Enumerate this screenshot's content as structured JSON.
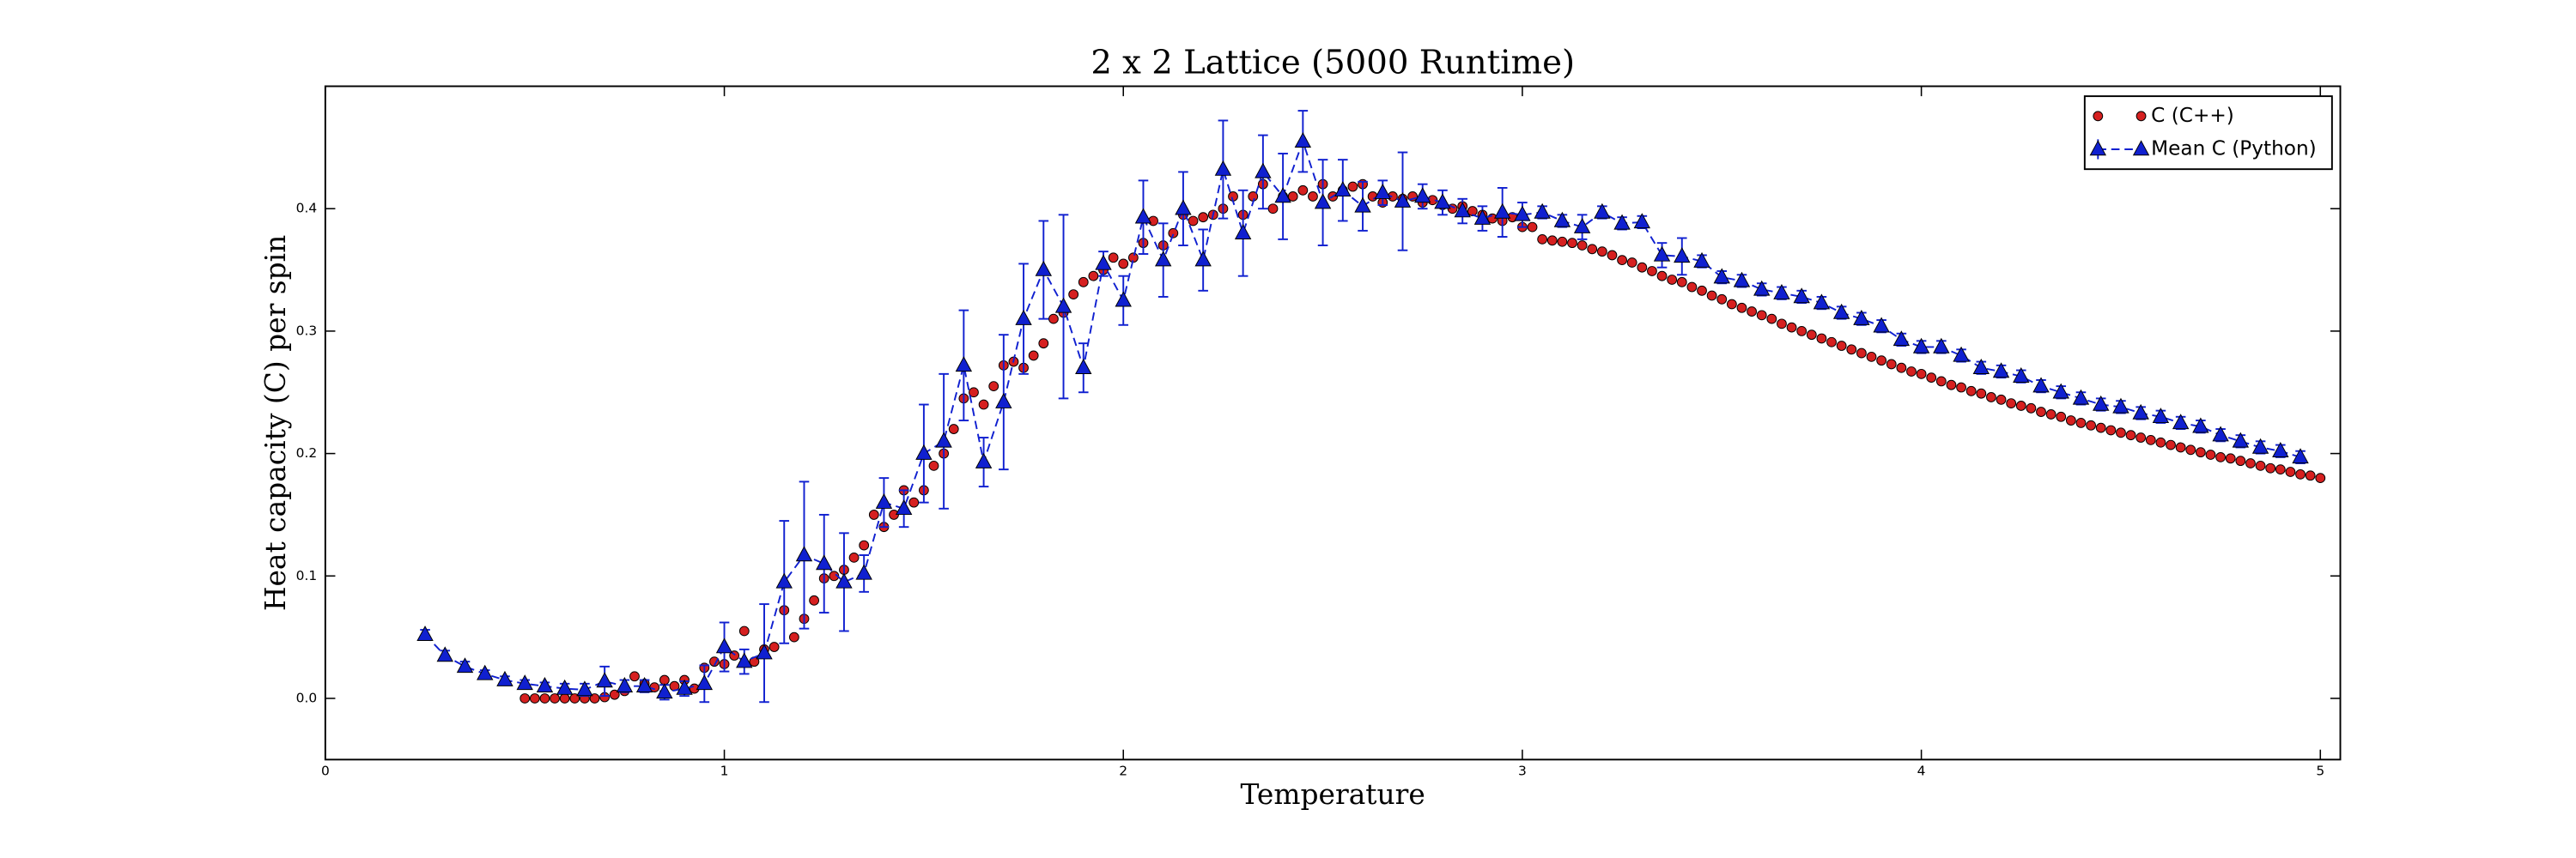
{
  "chart_data": {
    "type": "scatter",
    "title": "2 x 2 Lattice (5000 Runtime)",
    "xlabel": "Temperature",
    "ylabel": "Heat capacity (C) per spin",
    "xlim": [
      0,
      5.05
    ],
    "ylim": [
      -0.05,
      0.5
    ],
    "xticks": [
      0,
      1,
      2,
      3,
      4,
      5
    ],
    "yticks": [
      {
        "value": 0,
        "label": "0.0"
      },
      {
        "value": 0.1,
        "label": "0.1"
      },
      {
        "value": 0.2,
        "label": "0.2"
      },
      {
        "value": 0.3,
        "label": "0.3"
      },
      {
        "value": 0.4,
        "label": "0.4"
      }
    ],
    "legend": "upper right",
    "series": [
      {
        "name": "C (C++)",
        "color": "#d62020",
        "marker": "o",
        "linestyle": "none",
        "x": [
          0.5,
          0.525,
          0.55,
          0.575,
          0.6,
          0.625,
          0.65,
          0.675,
          0.7,
          0.725,
          0.75,
          0.775,
          0.8,
          0.825,
          0.85,
          0.875,
          0.9,
          0.925,
          0.95,
          0.975,
          1.0,
          1.025,
          1.05,
          1.075,
          1.1,
          1.125,
          1.15,
          1.175,
          1.2,
          1.225,
          1.25,
          1.275,
          1.3,
          1.325,
          1.35,
          1.375,
          1.4,
          1.425,
          1.45,
          1.475,
          1.5,
          1.525,
          1.55,
          1.575,
          1.6,
          1.625,
          1.65,
          1.675,
          1.7,
          1.725,
          1.75,
          1.775,
          1.8,
          1.825,
          1.85,
          1.875,
          1.9,
          1.925,
          1.95,
          1.975,
          2.0,
          2.025,
          2.05,
          2.075,
          2.1,
          2.125,
          2.15,
          2.175,
          2.2,
          2.225,
          2.25,
          2.275,
          2.3,
          2.325,
          2.35,
          2.375,
          2.4,
          2.425,
          2.45,
          2.475,
          2.5,
          2.525,
          2.55,
          2.575,
          2.6,
          2.625,
          2.65,
          2.675,
          2.7,
          2.725,
          2.75,
          2.775,
          2.8,
          2.825,
          2.85,
          2.875,
          2.9,
          2.925,
          2.95,
          2.975,
          3.0,
          3.025,
          3.05,
          3.075,
          3.1,
          3.125,
          3.15,
          3.175,
          3.2,
          3.225,
          3.25,
          3.275,
          3.3,
          3.325,
          3.35,
          3.375,
          3.4,
          3.425,
          3.45,
          3.475,
          3.5,
          3.525,
          3.55,
          3.575,
          3.6,
          3.625,
          3.65,
          3.675,
          3.7,
          3.725,
          3.75,
          3.775,
          3.8,
          3.825,
          3.85,
          3.875,
          3.9,
          3.925,
          3.95,
          3.975,
          4.0,
          4.025,
          4.05,
          4.075,
          4.1,
          4.125,
          4.15,
          4.175,
          4.2,
          4.225,
          4.25,
          4.275,
          4.3,
          4.325,
          4.35,
          4.375,
          4.4,
          4.425,
          4.45,
          4.475,
          4.5,
          4.525,
          4.55,
          4.575,
          4.6,
          4.625,
          4.65,
          4.675,
          4.7,
          4.725,
          4.75,
          4.775,
          4.8,
          4.825,
          4.85,
          4.875,
          4.9,
          4.925,
          4.95,
          4.975,
          5.0
        ],
        "values": [
          0,
          0,
          0,
          0,
          0,
          0,
          0,
          0,
          0.001,
          0.003,
          0.006,
          0.018,
          0.012,
          0.009,
          0.015,
          0.01,
          0.015,
          0.008,
          0.025,
          0.03,
          0.028,
          0.035,
          0.055,
          0.03,
          0.04,
          0.042,
          0.072,
          0.05,
          0.065,
          0.08,
          0.098,
          0.1,
          0.105,
          0.115,
          0.125,
          0.15,
          0.14,
          0.15,
          0.17,
          0.16,
          0.17,
          0.19,
          0.2,
          0.22,
          0.245,
          0.25,
          0.24,
          0.255,
          0.272,
          0.275,
          0.27,
          0.28,
          0.29,
          0.31,
          0.315,
          0.33,
          0.34,
          0.345,
          0.35,
          0.36,
          0.355,
          0.36,
          0.372,
          0.39,
          0.37,
          0.38,
          0.395,
          0.39,
          0.393,
          0.395,
          0.4,
          0.41,
          0.395,
          0.41,
          0.42,
          0.4,
          0.41,
          0.41,
          0.415,
          0.41,
          0.42,
          0.41,
          0.415,
          0.418,
          0.42,
          0.41,
          0.405,
          0.41,
          0.408,
          0.41,
          0.405,
          0.407,
          0.403,
          0.4,
          0.402,
          0.398,
          0.395,
          0.392,
          0.39,
          0.393,
          0.385,
          0.385,
          0.375,
          0.374,
          0.373,
          0.372,
          0.37,
          0.367,
          0.365,
          0.362,
          0.358,
          0.356,
          0.352,
          0.349,
          0.345,
          0.342,
          0.34,
          0.336,
          0.333,
          0.329,
          0.326,
          0.322,
          0.319,
          0.316,
          0.313,
          0.31,
          0.306,
          0.303,
          0.3,
          0.297,
          0.294,
          0.291,
          0.288,
          0.285,
          0.282,
          0.279,
          0.276,
          0.273,
          0.27,
          0.267,
          0.265,
          0.262,
          0.259,
          0.256,
          0.254,
          0.251,
          0.249,
          0.246,
          0.244,
          0.241,
          0.239,
          0.237,
          0.234,
          0.232,
          0.23,
          0.227,
          0.225,
          0.223,
          0.221,
          0.219,
          0.217,
          0.215,
          0.213,
          0.211,
          0.209,
          0.207,
          0.205,
          0.203,
          0.201,
          0.199,
          0.197,
          0.196,
          0.194,
          0.192,
          0.19,
          0.188,
          0.187,
          0.185,
          0.183,
          0.182,
          0.18
        ]
      },
      {
        "name": "Mean C (Python)",
        "color": "#1020d0",
        "marker": "^",
        "linestyle": "dashed",
        "x": [
          0.25,
          0.3,
          0.35,
          0.4,
          0.45,
          0.5,
          0.55,
          0.6,
          0.65,
          0.7,
          0.75,
          0.8,
          0.85,
          0.9,
          0.95,
          1.0,
          1.05,
          1.1,
          1.15,
          1.2,
          1.25,
          1.3,
          1.35,
          1.4,
          1.45,
          1.5,
          1.55,
          1.6,
          1.65,
          1.7,
          1.75,
          1.8,
          1.85,
          1.9,
          1.95,
          2.0,
          2.05,
          2.1,
          2.15,
          2.2,
          2.25,
          2.3,
          2.35,
          2.4,
          2.45,
          2.5,
          2.55,
          2.6,
          2.65,
          2.7,
          2.75,
          2.8,
          2.85,
          2.9,
          2.95,
          3.0,
          3.05,
          3.1,
          3.15,
          3.2,
          3.25,
          3.3,
          3.35,
          3.4,
          3.45,
          3.5,
          3.55,
          3.6,
          3.65,
          3.7,
          3.75,
          3.8,
          3.85,
          3.9,
          3.95,
          4.0,
          4.05,
          4.1,
          4.15,
          4.2,
          4.25,
          4.3,
          4.35,
          4.4,
          4.45,
          4.5,
          4.55,
          4.6,
          4.65,
          4.7,
          4.75,
          4.8,
          4.85,
          4.9,
          4.95
        ],
        "values": [
          0.052,
          0.035,
          0.026,
          0.02,
          0.015,
          0.012,
          0.01,
          0.008,
          0.007,
          0.014,
          0.01,
          0.01,
          0.005,
          0.008,
          0.012,
          0.042,
          0.03,
          0.037,
          0.095,
          0.117,
          0.11,
          0.095,
          0.102,
          0.16,
          0.155,
          0.2,
          0.21,
          0.272,
          0.193,
          0.242,
          0.31,
          0.35,
          0.32,
          0.27,
          0.355,
          0.325,
          0.393,
          0.358,
          0.4,
          0.358,
          0.432,
          0.38,
          0.43,
          0.41,
          0.455,
          0.405,
          0.415,
          0.402,
          0.413,
          0.406,
          0.41,
          0.405,
          0.398,
          0.392,
          0.397,
          0.395,
          0.397,
          0.39,
          0.385,
          0.397,
          0.388,
          0.389,
          0.362,
          0.361,
          0.357,
          0.344,
          0.341,
          0.334,
          0.331,
          0.328,
          0.323,
          0.315,
          0.31,
          0.304,
          0.293,
          0.287,
          0.287,
          0.28,
          0.27,
          0.267,
          0.263,
          0.255,
          0.25,
          0.245,
          0.24,
          0.238,
          0.233,
          0.23,
          0.225,
          0.222,
          0.215,
          0.21,
          0.205,
          0.202,
          0.197
        ],
        "errors": [
          0.004,
          0.004,
          0.004,
          0.003,
          0.003,
          0.003,
          0.003,
          0.004,
          0.005,
          0.012,
          0.005,
          0.005,
          0.006,
          0.006,
          0.015,
          0.02,
          0.01,
          0.04,
          0.05,
          0.06,
          0.04,
          0.04,
          0.015,
          0.02,
          0.015,
          0.04,
          0.055,
          0.045,
          0.02,
          0.055,
          0.045,
          0.04,
          0.075,
          0.02,
          0.01,
          0.02,
          0.03,
          0.03,
          0.03,
          0.025,
          0.04,
          0.035,
          0.03,
          0.035,
          0.025,
          0.035,
          0.025,
          0.02,
          0.01,
          0.04,
          0.01,
          0.01,
          0.01,
          0.01,
          0.02,
          0.01,
          0.005,
          0.005,
          0.01,
          0.005,
          0.005,
          0.005,
          0.01,
          0.015,
          0.005,
          0.005,
          0.005,
          0.005,
          0.005,
          0.005,
          0.005,
          0.005,
          0.005,
          0.005,
          0.005,
          0.005,
          0.005,
          0.005,
          0.005,
          0.005,
          0.005,
          0.005,
          0.005,
          0.005,
          0.005,
          0.005,
          0.005,
          0.005,
          0.005,
          0.005,
          0.005,
          0.005,
          0.005,
          0.005,
          0.005
        ]
      }
    ]
  }
}
